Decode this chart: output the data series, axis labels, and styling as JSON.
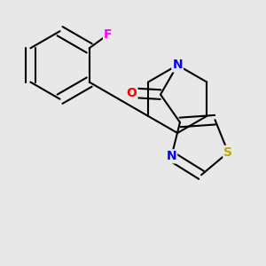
{
  "bg_color": "#e8e8e8",
  "bond_color": "#000000",
  "bond_width": 1.5,
  "atom_labels": {
    "F": {
      "color": "#ff00ff",
      "fontsize": 10
    },
    "N": {
      "color": "#0000ff",
      "fontsize": 10
    },
    "O": {
      "color": "#ff0000",
      "fontsize": 10
    },
    "S": {
      "color": "#bbaa00",
      "fontsize": 10
    }
  },
  "xlim": [
    0.0,
    1.0
  ],
  "ylim": [
    0.0,
    1.0
  ]
}
